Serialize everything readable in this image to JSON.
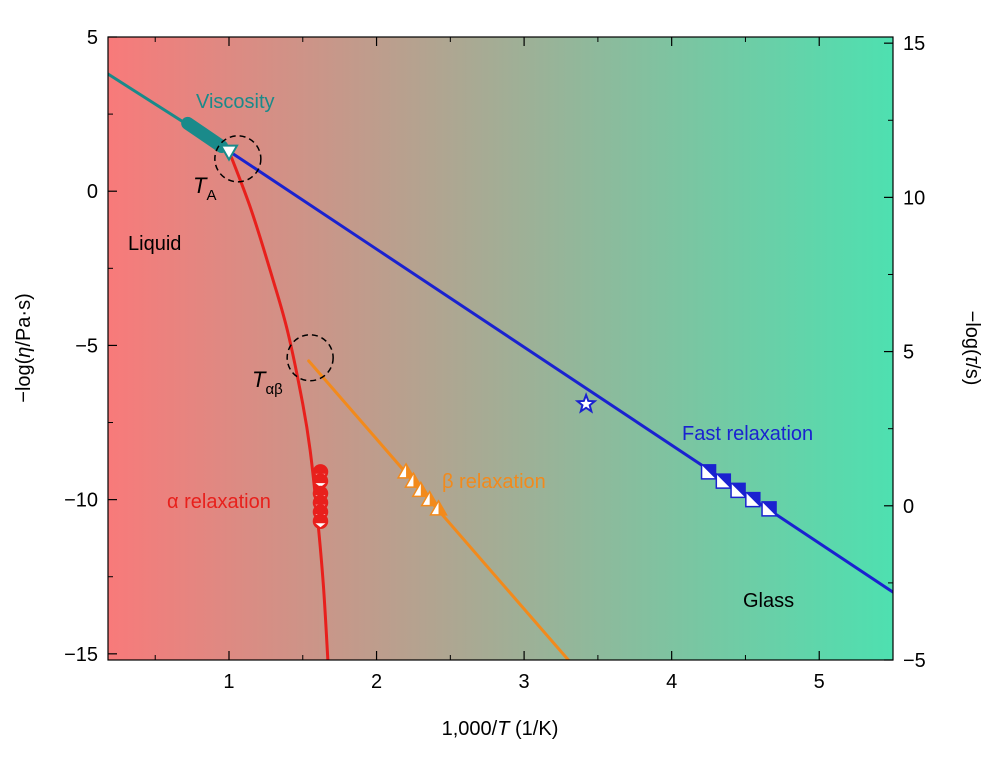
{
  "chart_data": {
    "type": "scatter",
    "xlabel_prefix": "1,000/",
    "xlabel_var": "T",
    "xlabel_suffix": " (1/K)",
    "ylabel_left_prefix": "−log(",
    "ylabel_left_var": "η",
    "ylabel_left_suffix": "/Pa·s)",
    "ylabel_right_prefix": "−log(",
    "ylabel_right_var": "τ",
    "ylabel_right_suffix": "/s)",
    "xlim": [
      0.18,
      5.5
    ],
    "ylim_left": [
      -15.2,
      5
    ],
    "ylim_right": [
      -5,
      15.2
    ],
    "x_ticks": [
      1,
      2,
      3,
      4,
      5
    ],
    "x_tick_labels": [
      "1",
      "2",
      "3",
      "4",
      "5"
    ],
    "y_left_ticks": [
      5,
      0,
      -5,
      -10,
      -15
    ],
    "y_left_tick_labels": [
      "5",
      "0",
      "−5",
      "−10",
      "−15"
    ],
    "y_right_ticks": [
      15,
      10,
      5,
      0,
      -5
    ],
    "y_right_tick_labels": [
      "15",
      "10",
      "5",
      "0",
      "−5"
    ],
    "background_gradient": [
      "#f87a7a",
      "#4ee0b0"
    ],
    "annotations": {
      "viscosity": {
        "text": "Viscosity",
        "color": "#1a8a8a"
      },
      "liquid": {
        "text": "Liquid",
        "color": "#000000"
      },
      "glass": {
        "text": "Glass",
        "color": "#000000"
      },
      "alpha": {
        "text": "α relaxation",
        "color": "#e8201c"
      },
      "beta": {
        "text": "β relaxation",
        "color": "#f28a1c"
      },
      "fast": {
        "text": "Fast relaxation",
        "color": "#1a22d0"
      },
      "TA": {
        "var": "T",
        "sub": "A"
      },
      "Tab": {
        "var": "T",
        "sub": "αβ"
      }
    },
    "series": [
      {
        "name": "Viscosity",
        "color": "#1a8a8a",
        "kind": "line",
        "x": [
          0.18,
          1.0
        ],
        "y": [
          3.8,
          1.3
        ]
      },
      {
        "name": "Viscosity",
        "color": "#1a8a8a",
        "kind": "thick-segment",
        "x": [
          0.72,
          0.95
        ],
        "y": [
          2.2,
          1.45
        ]
      },
      {
        "name": "Fast relaxation",
        "color": "#1a22d0",
        "kind": "line",
        "x": [
          1.0,
          5.5
        ],
        "y": [
          1.3,
          -13.0
        ]
      },
      {
        "name": "α relaxation",
        "color": "#e8201c",
        "kind": "line",
        "x": [
          1.0,
          1.15,
          1.3,
          1.4,
          1.5,
          1.55,
          1.6,
          1.64,
          1.67
        ],
        "y": [
          1.3,
          -0.6,
          -2.9,
          -4.6,
          -6.9,
          -8.4,
          -10.6,
          -12.8,
          -15.2
        ]
      },
      {
        "name": "β relaxation",
        "color": "#f28a1c",
        "kind": "line",
        "x": [
          1.54,
          3.3
        ],
        "y": [
          -5.5,
          -15.2
        ]
      },
      {
        "name": "Fast relaxation",
        "color": "#1a22d0",
        "kind": "square-markers",
        "x": [
          4.25,
          4.35,
          4.45,
          4.55,
          4.66
        ],
        "y": [
          -9.1,
          -9.4,
          -9.7,
          -10.0,
          -10.3
        ]
      },
      {
        "name": "α relaxation",
        "color": "#e8201c",
        "kind": "circle-markers",
        "x": [
          1.62,
          1.62,
          1.62,
          1.62,
          1.62,
          1.62
        ],
        "y": [
          -9.1,
          -9.4,
          -9.8,
          -10.1,
          -10.4,
          -10.7
        ]
      },
      {
        "name": "β relaxation",
        "color": "#f28a1c",
        "kind": "triangle-markers",
        "x": [
          2.2,
          2.25,
          2.3,
          2.36,
          2.42
        ],
        "y": [
          -9.1,
          -9.4,
          -9.7,
          -10.0,
          -10.3
        ]
      },
      {
        "name": "Viscosity",
        "color": "#1a8a8a",
        "kind": "triangle-down-marker",
        "x": [
          1.0
        ],
        "y": [
          1.25
        ]
      },
      {
        "name": "Fast relaxation",
        "color": "#1a22d0",
        "kind": "star-marker",
        "x": [
          3.42
        ],
        "y": [
          -6.9
        ]
      }
    ],
    "dashed_circles": [
      {
        "label": "TA",
        "x": 1.06,
        "y": 1.05
      },
      {
        "label": "Tab",
        "x": 1.55,
        "y": -5.4
      }
    ],
    "grid": false,
    "legend": "none"
  }
}
